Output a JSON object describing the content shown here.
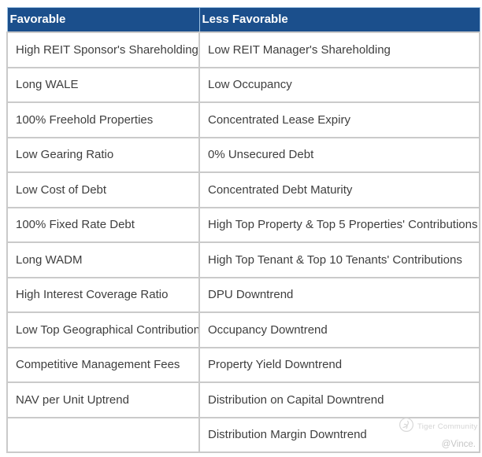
{
  "table": {
    "headers": [
      "Favorable",
      "Less Favorable"
    ],
    "rows": [
      [
        "High REIT Sponsor's Shareholding",
        "Low REIT Manager's Shareholding"
      ],
      [
        "Long WALE",
        "Low Occupancy"
      ],
      [
        "100% Freehold Properties",
        "Concentrated Lease Expiry"
      ],
      [
        "Low Gearing Ratio",
        "0% Unsecured Debt"
      ],
      [
        "Low Cost of Debt",
        "Concentrated Debt Maturity"
      ],
      [
        "100% Fixed Rate Debt",
        "High Top Property & Top 5 Properties' Contributions"
      ],
      [
        "Long WADM",
        "High Top Tenant & Top 10 Tenants' Contributions"
      ],
      [
        "High Interest Coverage Ratio",
        "DPU Downtrend"
      ],
      [
        "Low Top Geographical Contribution",
        "Occupancy Downtrend"
      ],
      [
        "Competitive Management Fees",
        "Property Yield Downtrend"
      ],
      [
        "NAV per Unit Uptrend",
        "Distribution on Capital Downtrend"
      ],
      [
        "",
        "Distribution Margin Downtrend"
      ]
    ]
  },
  "chart_data": {
    "type": "table",
    "title": "",
    "columns": [
      "Favorable",
      "Less Favorable"
    ],
    "rows": [
      [
        "High REIT Sponsor's Shareholding",
        "Low REIT Manager's Shareholding"
      ],
      [
        "Long WALE",
        "Low Occupancy"
      ],
      [
        "100% Freehold Properties",
        "Concentrated Lease Expiry"
      ],
      [
        "Low Gearing Ratio",
        "0% Unsecured Debt"
      ],
      [
        "Low Cost of Debt",
        "Concentrated Debt Maturity"
      ],
      [
        "100% Fixed Rate Debt",
        "High Top Property & Top 5 Properties' Contributions"
      ],
      [
        "Long WADM",
        "High Top Tenant & Top 10 Tenants' Contributions"
      ],
      [
        "High Interest Coverage Ratio",
        "DPU Downtrend"
      ],
      [
        "Low Top Geographical Contribution",
        "Occupancy Downtrend"
      ],
      [
        "Competitive Management Fees",
        "Property Yield Downtrend"
      ],
      [
        "NAV per Unit Uptrend",
        "Distribution on Capital Downtrend"
      ],
      [
        "",
        "Distribution Margin Downtrend"
      ]
    ],
    "layout_hints": {
      "header_background": "#1B4F8C",
      "header_text_color": "#FFFFFF",
      "grid": true
    }
  },
  "watermark": {
    "community": "Tiger Community",
    "author": "@Vince."
  },
  "colors": {
    "header_bg": "#1B4F8C",
    "header_text": "#FFFFFF",
    "border": "#CACACA",
    "cell_text": "#3E3E3E",
    "watermark_text": "#D4D4D4"
  }
}
